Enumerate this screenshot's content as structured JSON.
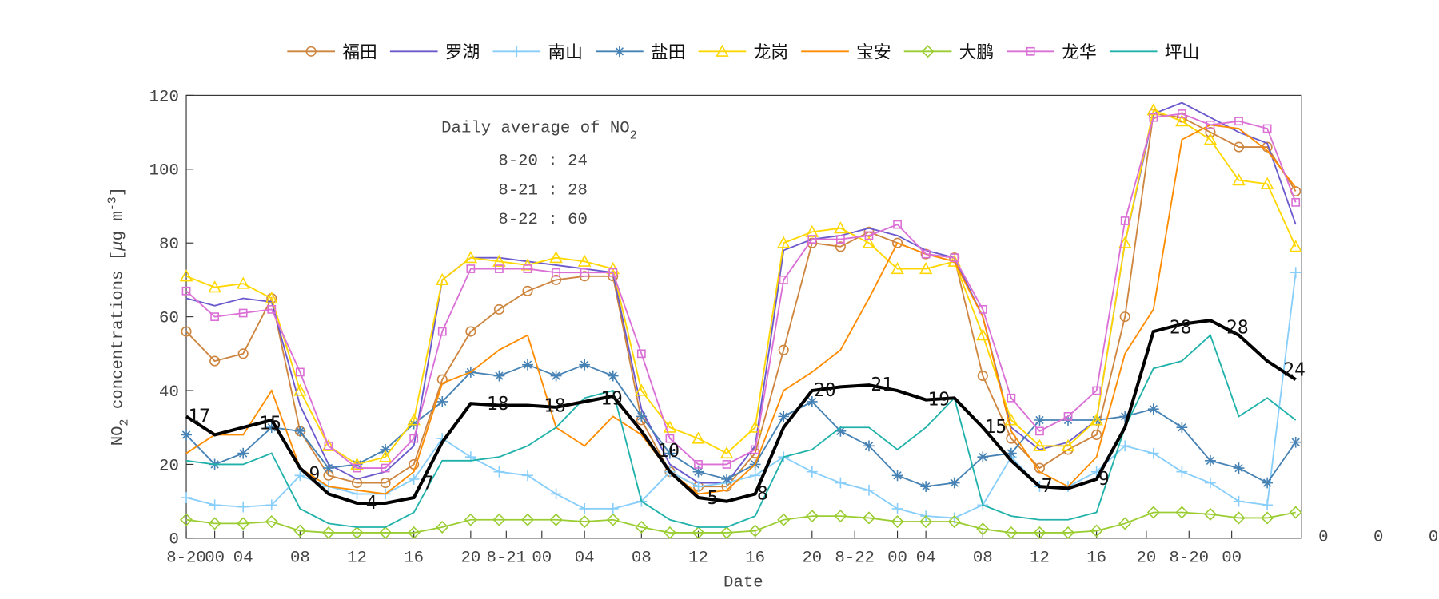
{
  "chart_data": {
    "type": "line",
    "xlabel": "Date",
    "ylabel": {
      "main": "NO",
      "sub": "2",
      "rest": " concentrations [",
      "mu": "μ",
      "unit": "g m",
      "sup": "-3",
      "end": "]"
    },
    "inset": {
      "title": "Daily average of NO",
      "title_sub": "2",
      "lines": [
        "8-20 : 24",
        "8-21 : 28",
        "8-22 : 60"
      ]
    },
    "xlim": [
      0,
      78.4
    ],
    "ylim": [
      0,
      120
    ],
    "yticks": [
      0,
      20,
      40,
      60,
      80,
      100,
      120
    ],
    "xticks": [
      {
        "value": 0,
        "label": "8-20"
      },
      {
        "value": 2,
        "label": "00"
      },
      {
        "value": 4,
        "label": "04"
      },
      {
        "value": 8,
        "label": "08"
      },
      {
        "value": 12,
        "label": "12"
      },
      {
        "value": 16,
        "label": "16"
      },
      {
        "value": 20,
        "label": "20"
      },
      {
        "value": 22.5,
        "label": "8-21"
      },
      {
        "value": 25,
        "label": "00"
      },
      {
        "value": 28,
        "label": "04"
      },
      {
        "value": 32,
        "label": "08"
      },
      {
        "value": 36,
        "label": "12"
      },
      {
        "value": 40,
        "label": "16"
      },
      {
        "value": 44,
        "label": "20"
      },
      {
        "value": 47,
        "label": "8-22"
      },
      {
        "value": 50,
        "label": "00"
      },
      {
        "value": 52,
        "label": "04"
      },
      {
        "value": 56,
        "label": "08"
      },
      {
        "value": 60,
        "label": "12"
      },
      {
        "value": 64,
        "label": "16"
      },
      {
        "value": 67.5,
        "label": "20"
      },
      {
        "value": 70.5,
        "label": "8-20"
      },
      {
        "value": 73.5,
        "label": "00"
      }
    ],
    "right_labels": [
      "0",
      "0",
      "0"
    ],
    "x": [
      0,
      2,
      4,
      6,
      8,
      10,
      12,
      14,
      16,
      18,
      20,
      22,
      24,
      26,
      28,
      30,
      32,
      34,
      36,
      38,
      40,
      42,
      44,
      46,
      48,
      50,
      52,
      54,
      56,
      58,
      60,
      62,
      64,
      66,
      68,
      70,
      72,
      74,
      76,
      78
    ],
    "series": [
      {
        "name": "福田",
        "color": "#cd853f",
        "marker": "circle",
        "values": [
          56,
          48,
          50,
          65,
          29,
          17,
          15,
          15,
          20,
          43,
          56,
          62,
          67,
          70,
          71,
          71,
          32,
          18,
          14,
          14,
          23,
          51,
          80,
          79,
          83,
          80,
          77,
          76,
          44,
          27,
          19,
          24,
          28,
          60,
          115,
          114,
          110,
          106,
          106,
          94
        ]
      },
      {
        "name": "罗湖",
        "color": "#6a5acd",
        "marker": "none",
        "values": [
          65,
          63,
          65,
          64,
          36,
          20,
          16,
          18,
          25,
          70,
          76,
          76,
          75,
          74,
          73,
          72,
          35,
          20,
          15,
          15,
          25,
          78,
          81,
          82,
          84,
          82,
          78,
          76,
          60,
          30,
          24,
          26,
          32,
          80,
          115,
          118,
          114,
          110,
          107,
          85
        ]
      },
      {
        "name": "南山",
        "color": "#87cefa",
        "marker": "plus",
        "values": [
          11,
          9,
          8.5,
          9,
          17,
          14,
          12,
          12,
          16,
          27,
          22,
          18,
          17,
          12,
          8,
          8,
          10,
          18,
          14,
          15,
          17,
          22,
          18,
          15,
          13,
          8,
          6,
          5.5,
          9,
          22,
          14,
          14,
          18,
          25,
          23,
          18,
          15,
          10,
          9,
          72
        ]
      },
      {
        "name": "盐田",
        "color": "#4682b4",
        "marker": "star",
        "values": [
          28,
          20,
          23,
          30,
          29,
          19,
          20,
          24,
          31,
          37,
          45,
          44,
          47,
          44,
          47,
          44,
          33,
          23,
          18,
          16,
          20,
          33,
          37,
          29,
          25,
          17,
          14,
          15,
          22,
          23,
          32,
          32,
          32,
          33,
          35,
          30,
          21,
          19,
          15,
          26
        ]
      },
      {
        "name": "龙岗",
        "color": "#ffd700",
        "marker": "triangle",
        "values": [
          71,
          68,
          69,
          65,
          40,
          25,
          20,
          22,
          32,
          70,
          76,
          75,
          74,
          76,
          75,
          73,
          40,
          30,
          27,
          23,
          30,
          80,
          83,
          84,
          80,
          73,
          73,
          75,
          55,
          32,
          25,
          25,
          32,
          80,
          116,
          113,
          108,
          97,
          96,
          79
        ]
      },
      {
        "name": "宝安",
        "color": "#ff8c00",
        "marker": "none",
        "values": [
          23,
          28,
          28,
          40,
          19,
          14,
          13,
          12,
          18,
          42,
          45,
          51,
          55,
          30,
          25,
          33,
          28,
          18,
          12,
          13,
          20,
          40,
          45,
          51,
          65,
          80,
          77,
          75,
          60,
          29,
          18,
          14,
          22,
          50,
          62,
          108,
          112,
          111,
          105,
          95
        ]
      },
      {
        "name": "大鹏",
        "color": "#9acd32",
        "marker": "diamond",
        "values": [
          5,
          4,
          4,
          4.5,
          2,
          1.5,
          1.5,
          1.5,
          1.5,
          3,
          5,
          5,
          5,
          5,
          4.5,
          5,
          3,
          1.5,
          1.5,
          1.5,
          2,
          5,
          6,
          6,
          5.5,
          4.5,
          4.5,
          4.5,
          2.5,
          1.5,
          1.5,
          1.5,
          2,
          4,
          7,
          7,
          6.5,
          5.5,
          5.5,
          7
        ]
      },
      {
        "name": "龙华",
        "color": "#da70d6",
        "marker": "square",
        "values": [
          67,
          60,
          61,
          62,
          45,
          25,
          19,
          19,
          27,
          56,
          73,
          73,
          73,
          72,
          72,
          72,
          50,
          27,
          20,
          20,
          24,
          70,
          81,
          81,
          82,
          85,
          77,
          76,
          62,
          38,
          29,
          33,
          40,
          86,
          114,
          115,
          112,
          113,
          111,
          91
        ]
      },
      {
        "name": "坪山",
        "color": "#20b2aa",
        "marker": "none",
        "values": [
          21,
          20,
          20,
          23,
          8,
          4,
          3,
          3,
          7,
          21,
          21,
          22,
          25,
          30,
          38,
          40,
          10,
          5,
          3,
          3,
          6,
          22,
          24,
          30,
          30,
          24,
          30,
          38,
          9,
          6,
          5,
          5,
          7,
          30,
          46,
          48,
          55,
          33,
          38,
          32
        ]
      }
    ],
    "average": {
      "color": "#000000",
      "values": [
        33,
        28,
        30,
        32,
        19,
        12,
        9.5,
        9.5,
        11,
        26,
        36.5,
        36,
        36,
        35.5,
        37,
        38.5,
        29,
        18,
        11,
        10,
        12,
        30,
        40,
        41,
        41.5,
        40,
        37.5,
        38,
        30,
        21,
        14,
        13.5,
        16,
        30,
        56,
        58,
        59,
        55,
        48,
        43
      ]
    },
    "average_labels": {
      "x": [
        0,
        5,
        8.5,
        12.5,
        16.5,
        21,
        25,
        29,
        33,
        36.5,
        40,
        44,
        48,
        52,
        56,
        60,
        64,
        69,
        73,
        77
      ],
      "values": [
        17,
        15,
        9,
        4,
        7,
        18,
        18,
        19,
        10,
        5,
        8,
        20,
        21,
        19,
        15,
        7,
        9,
        28,
        28,
        24
      ]
    }
  }
}
